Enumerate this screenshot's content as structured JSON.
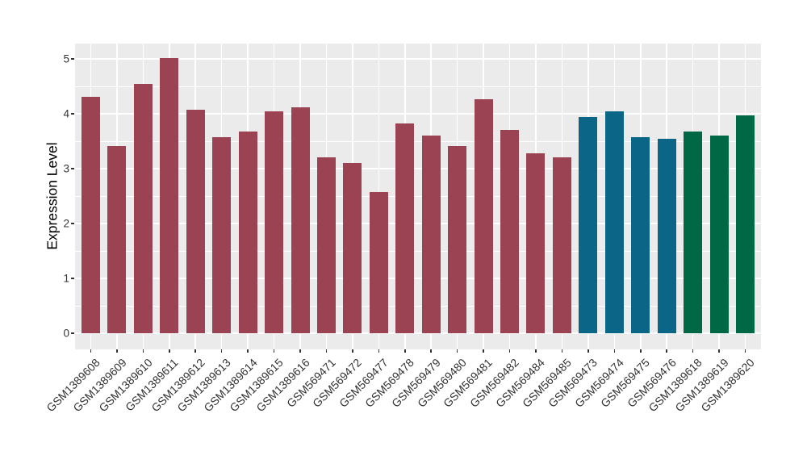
{
  "chart_data": {
    "type": "bar",
    "title": "",
    "xlabel": "",
    "ylabel": "Expression Level",
    "ylim": [
      0,
      5.28
    ],
    "yticks": [
      0,
      1,
      2,
      3,
      4,
      5
    ],
    "yticks_minor": [
      0.5,
      1.5,
      2.5,
      3.5,
      4.5
    ],
    "grid": true,
    "legend_position": "none",
    "panel_bg": "#EBEBEB",
    "grid_color": "#FFFFFF",
    "categories": [
      "GSM1389608",
      "GSM1389609",
      "GSM1389610",
      "GSM1389611",
      "GSM1389612",
      "GSM1389613",
      "GSM1389614",
      "GSM1389615",
      "GSM1389616",
      "GSM569471",
      "GSM569472",
      "GSM569477",
      "GSM569478",
      "GSM569479",
      "GSM569480",
      "GSM569481",
      "GSM569482",
      "GSM569484",
      "GSM569485",
      "GSM569473",
      "GSM569474",
      "GSM569475",
      "GSM569476",
      "GSM1389618",
      "GSM1389619",
      "GSM1389620"
    ],
    "values": [
      4.31,
      3.41,
      4.54,
      5.01,
      4.07,
      3.58,
      3.68,
      4.04,
      4.12,
      3.21,
      3.11,
      2.58,
      3.83,
      3.6,
      3.41,
      4.26,
      3.7,
      3.28,
      3.21,
      3.94,
      4.05,
      3.58,
      3.54,
      3.68,
      3.6,
      3.97
    ],
    "bar_groups": [
      "maroon",
      "maroon",
      "maroon",
      "maroon",
      "maroon",
      "maroon",
      "maroon",
      "maroon",
      "maroon",
      "maroon",
      "maroon",
      "maroon",
      "maroon",
      "maroon",
      "maroon",
      "maroon",
      "maroon",
      "maroon",
      "maroon",
      "blue",
      "blue",
      "blue",
      "blue",
      "green",
      "green",
      "green"
    ],
    "palette": {
      "maroon": "#9B4353",
      "blue": "#0B6586",
      "green": "#006845"
    }
  }
}
